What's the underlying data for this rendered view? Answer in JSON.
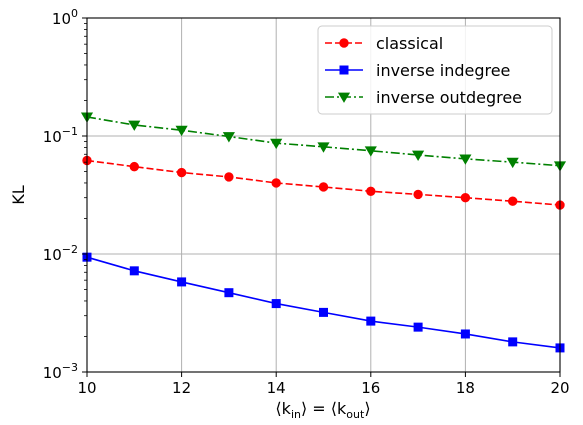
{
  "chart_data": {
    "type": "line",
    "title": "",
    "xlabel": "⟨k_in⟩ = ⟨k_out⟩",
    "ylabel": "KL",
    "xlim": [
      10,
      20
    ],
    "ylim": [
      0.001,
      1
    ],
    "yscale": "log",
    "grid": true,
    "legend_position": "top-right",
    "x_ticks": [
      10,
      12,
      14,
      16,
      18,
      20
    ],
    "y_ticks": [
      {
        "value": 0.001,
        "base": "10",
        "exp": "−3"
      },
      {
        "value": 0.01,
        "base": "10",
        "exp": "−2"
      },
      {
        "value": 0.1,
        "base": "10",
        "exp": "−1"
      },
      {
        "value": 1,
        "base": "10",
        "exp": "0"
      }
    ],
    "x": [
      10,
      11,
      12,
      13,
      14,
      15,
      16,
      17,
      18,
      19,
      20
    ],
    "series": [
      {
        "name": "classical",
        "color": "#ff0000",
        "linestyle": "dashed",
        "marker": "circle",
        "values": [
          0.062,
          0.055,
          0.049,
          0.045,
          0.04,
          0.037,
          0.034,
          0.032,
          0.03,
          0.028,
          0.026
        ]
      },
      {
        "name": "inverse indegree",
        "color": "#0000ff",
        "linestyle": "solid",
        "marker": "square",
        "values": [
          0.0094,
          0.0072,
          0.0058,
          0.0047,
          0.0038,
          0.0032,
          0.0027,
          0.0024,
          0.0021,
          0.0018,
          0.0016
        ]
      },
      {
        "name": "inverse outdegree",
        "color": "#008000",
        "linestyle": "dashdot",
        "marker": "triangle-down",
        "values": [
          0.145,
          0.124,
          0.112,
          0.099,
          0.087,
          0.081,
          0.075,
          0.069,
          0.064,
          0.06,
          0.056
        ]
      }
    ]
  }
}
